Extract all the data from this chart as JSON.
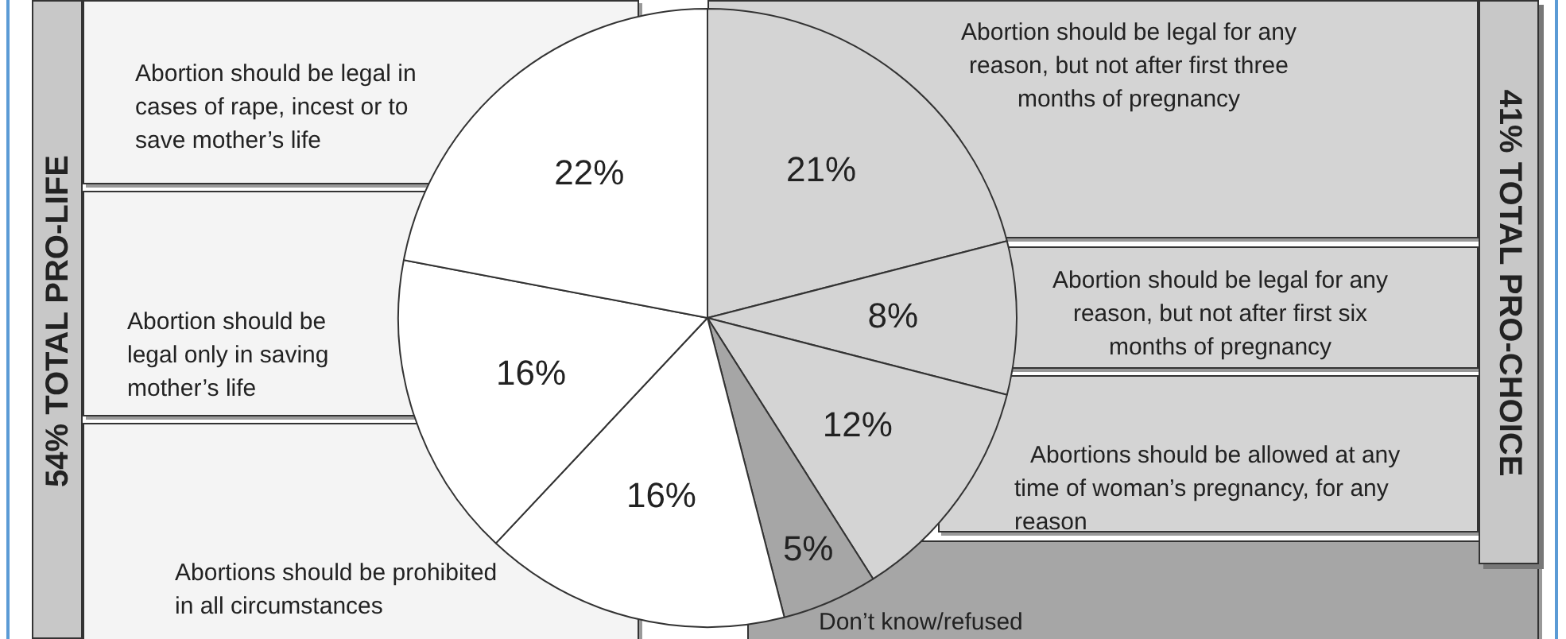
{
  "chart_data": {
    "type": "pie",
    "categories": [
      "Abortion should be legal for any reason, but not after first three months of pregnancy",
      "Abortion should be legal for any reason, but not after first six months of pregnancy",
      "Abortions should be allowed at any time of woman’s pregnancy, for any reason",
      "Don’t know/refused",
      "Abortions should be prohibited in all circumstances",
      "Abortion should be legal only in saving mother’s life",
      "Abortion should be legal in cases of rape, incest or to save mother’s life"
    ],
    "values": [
      21,
      8,
      12,
      5,
      16,
      16,
      22
    ],
    "colors": [
      "#d4d4d4",
      "#d4d4d4",
      "#d4d4d4",
      "#a6a6a6",
      "#ffffff",
      "#ffffff",
      "#ffffff"
    ],
    "value_labels": [
      "21%",
      "8%",
      "12%",
      "5%",
      "16%",
      "16%",
      "22%"
    ],
    "legend": false,
    "annotations": [
      "54% TOTAL PRO-LIFE",
      "41% TOTAL PRO-CHOICE"
    ]
  }
}
